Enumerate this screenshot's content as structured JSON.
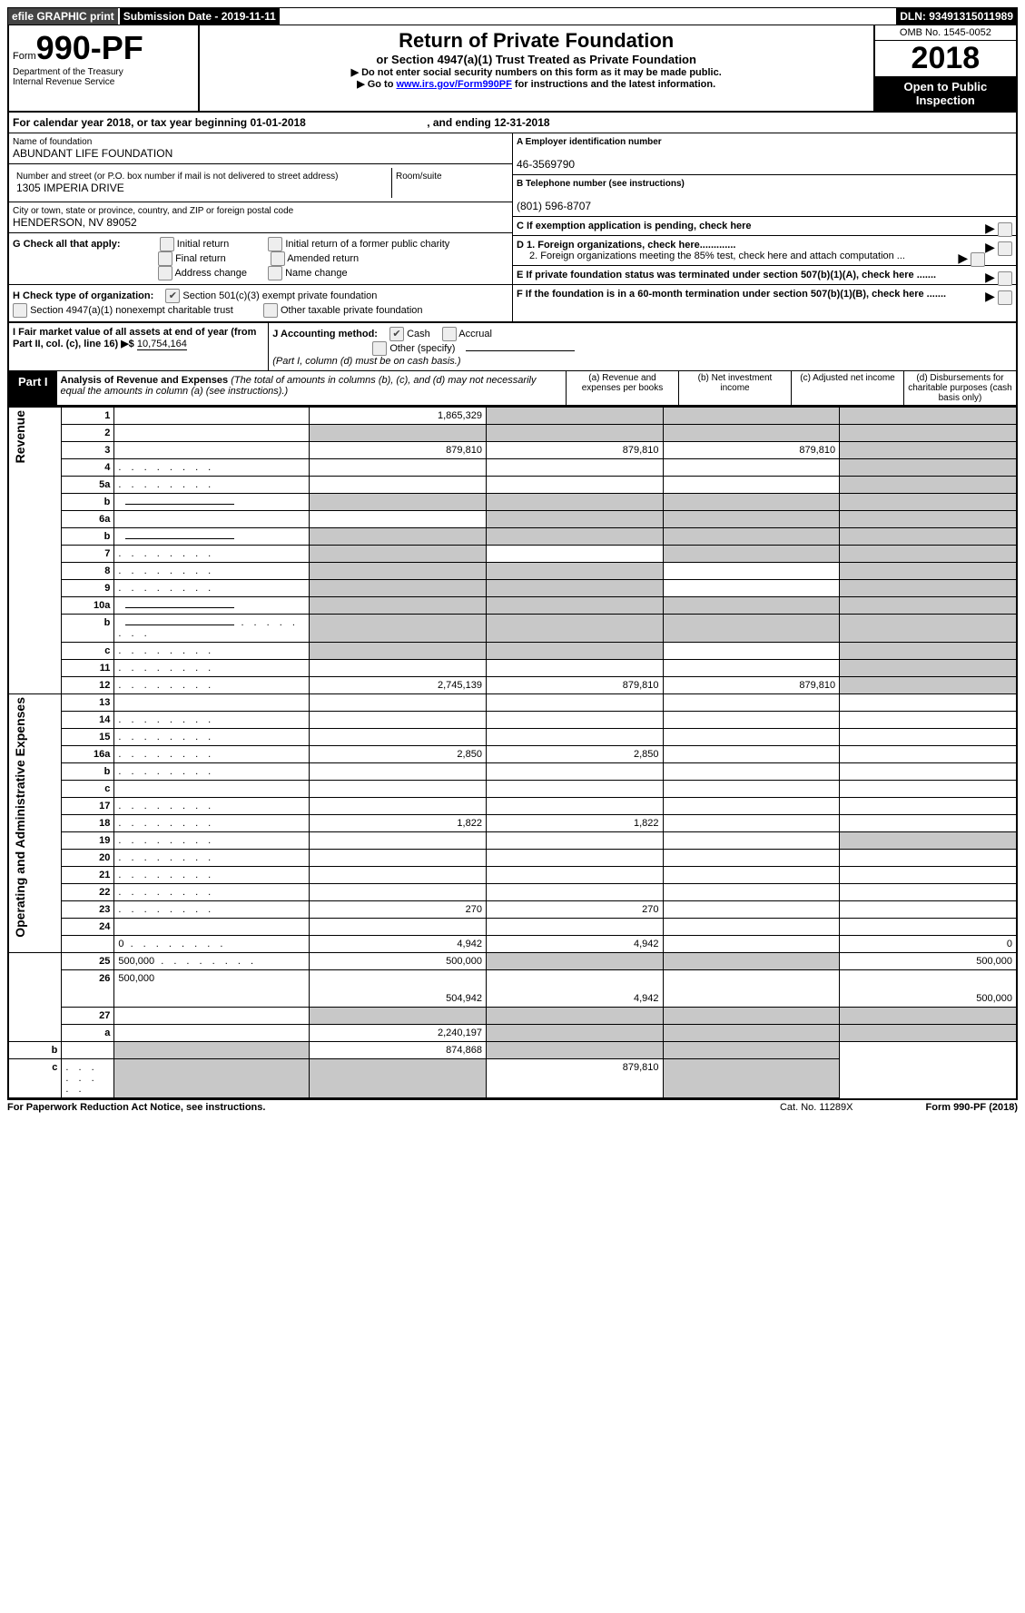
{
  "top": {
    "efile": "efile GRAPHIC print",
    "sub_date_lbl": "Submission Date - ",
    "sub_date": "2019-11-11",
    "dln_lbl": "DLN: ",
    "dln": "93491315011989"
  },
  "header": {
    "form_lbl": "Form",
    "form_num": "990-PF",
    "dept1": "Department of the Treasury",
    "dept2": "Internal Revenue Service",
    "title": "Return of Private Foundation",
    "subtitle": "or Section 4947(a)(1) Trust Treated as Private Foundation",
    "inst1": "▶ Do not enter social security numbers on this form as it may be made public.",
    "inst2_pre": "▶ Go to ",
    "inst2_link": "www.irs.gov/Form990PF",
    "inst2_post": " for instructions and the latest information.",
    "omb": "OMB No. 1545-0052",
    "year": "2018",
    "open": "Open to Public Inspection"
  },
  "cal": {
    "pre": "For calendar year 2018, or tax year beginning ",
    "begin": "01-01-2018",
    "mid": ", and ending ",
    "end": "12-31-2018"
  },
  "name": {
    "lbl": "Name of foundation",
    "val": "ABUNDANT LIFE FOUNDATION"
  },
  "addr": {
    "lbl": "Number and street (or P.O. box number if mail is not delivered to street address)",
    "val": "1305 IMPERIA DRIVE",
    "room_lbl": "Room/suite",
    "room": ""
  },
  "city": {
    "lbl": "City or town, state or province, country, and ZIP or foreign postal code",
    "val": "HENDERSON, NV  89052"
  },
  "boxA": {
    "lbl": "A Employer identification number",
    "val": "46-3569790"
  },
  "boxB": {
    "lbl": "B Telephone number (see instructions)",
    "val": "(801) 596-8707"
  },
  "boxC": {
    "lbl": "C  If exemption application is pending, check here"
  },
  "boxD1": {
    "lbl": "D 1. Foreign organizations, check here............."
  },
  "boxD2": {
    "lbl": "2. Foreign organizations meeting the 85% test, check here and attach computation ..."
  },
  "boxE": {
    "lbl": "E  If private foundation status was terminated under section 507(b)(1)(A), check here ......."
  },
  "boxF": {
    "lbl": "F  If the foundation is in a 60-month termination under section 507(b)(1)(B), check here ......."
  },
  "G": {
    "lbl": "G Check all that apply:",
    "opts": [
      "Initial return",
      "Initial return of a former public charity",
      "Final return",
      "Amended return",
      "Address change",
      "Name change"
    ]
  },
  "H": {
    "lbl": "H Check type of organization:",
    "o1": "Section 501(c)(3) exempt private foundation",
    "o2": "Section 4947(a)(1) nonexempt charitable trust",
    "o3": "Other taxable private foundation"
  },
  "I": {
    "lbl": "I Fair market value of all assets at end of year (from Part II, col. (c), line 16) ▶$",
    "val": "10,754,164"
  },
  "J": {
    "lbl": "J Accounting method:",
    "o1": "Cash",
    "o2": "Accrual",
    "o3": "Other (specify)",
    "note": "(Part I, column (d) must be on cash basis.)"
  },
  "part1": {
    "lbl": "Part I",
    "title": "Analysis of Revenue and Expenses",
    "sub": "(The total of amounts in columns (b), (c), and (d) may not necessarily equal the amounts in column (a) (see instructions).)",
    "cols": {
      "a": "(a)    Revenue and expenses per books",
      "b": "(b)    Net investment income",
      "c": "(c)    Adjusted net income",
      "d": "(d)    Disbursements for charitable purposes (cash basis only)"
    }
  },
  "sections": {
    "rev": "Revenue",
    "exp": "Operating and Administrative Expenses"
  },
  "rows": [
    {
      "n": "1",
      "d": "",
      "a": "1,865,329",
      "b": "",
      "c": "",
      "g": [
        "b",
        "c",
        "d"
      ]
    },
    {
      "n": "2",
      "d": "",
      "a": "",
      "b": "",
      "c": "",
      "g": [
        "a",
        "b",
        "c",
        "d"
      ]
    },
    {
      "n": "3",
      "d": "",
      "a": "879,810",
      "b": "879,810",
      "c": "879,810",
      "g": [
        "d"
      ]
    },
    {
      "n": "4",
      "d": "",
      "dots": 1,
      "a": "",
      "b": "",
      "c": "",
      "g": [
        "d"
      ]
    },
    {
      "n": "5a",
      "d": "",
      "dots": 1,
      "a": "",
      "b": "",
      "c": "",
      "g": [
        "d"
      ]
    },
    {
      "n": "b",
      "d": "",
      "sub": 1,
      "a": "",
      "b": "",
      "c": "",
      "g": [
        "a",
        "b",
        "c",
        "d"
      ]
    },
    {
      "n": "6a",
      "d": "",
      "a": "",
      "b": "",
      "c": "",
      "g": [
        "b",
        "c",
        "d"
      ]
    },
    {
      "n": "b",
      "d": "",
      "sub": 1,
      "a": "",
      "b": "",
      "c": "",
      "g": [
        "a",
        "b",
        "c",
        "d"
      ]
    },
    {
      "n": "7",
      "d": "",
      "dots": 1,
      "a": "",
      "b": "",
      "c": "",
      "g": [
        "a",
        "c",
        "d"
      ]
    },
    {
      "n": "8",
      "d": "",
      "dots": 1,
      "a": "",
      "b": "",
      "c": "",
      "g": [
        "a",
        "b",
        "d"
      ]
    },
    {
      "n": "9",
      "d": "",
      "dots": 1,
      "a": "",
      "b": "",
      "c": "",
      "g": [
        "a",
        "b",
        "d"
      ]
    },
    {
      "n": "10a",
      "d": "",
      "sub": 1,
      "a": "",
      "b": "",
      "c": "",
      "g": [
        "a",
        "b",
        "c",
        "d"
      ]
    },
    {
      "n": "b",
      "d": "",
      "dots": 1,
      "sub": 1,
      "a": "",
      "b": "",
      "c": "",
      "g": [
        "a",
        "b",
        "c",
        "d"
      ]
    },
    {
      "n": "c",
      "d": "",
      "dots": 1,
      "a": "",
      "b": "",
      "c": "",
      "g": [
        "a",
        "b",
        "d"
      ]
    },
    {
      "n": "11",
      "d": "",
      "dots": 1,
      "a": "",
      "b": "",
      "c": "",
      "g": [
        "d"
      ]
    },
    {
      "n": "12",
      "d": "",
      "dots": 1,
      "a": "2,745,139",
      "b": "879,810",
      "c": "879,810",
      "g": [
        "d"
      ]
    },
    {
      "n": "13",
      "d": "",
      "a": "",
      "b": "",
      "c": ""
    },
    {
      "n": "14",
      "d": "",
      "dots": 1,
      "a": "",
      "b": "",
      "c": ""
    },
    {
      "n": "15",
      "d": "",
      "dots": 1,
      "a": "",
      "b": "",
      "c": ""
    },
    {
      "n": "16a",
      "d": "",
      "dots": 1,
      "a": "2,850",
      "b": "2,850",
      "c": ""
    },
    {
      "n": "b",
      "d": "",
      "dots": 1,
      "a": "",
      "b": "",
      "c": ""
    },
    {
      "n": "c",
      "d": "",
      "a": "",
      "b": "",
      "c": ""
    },
    {
      "n": "17",
      "d": "",
      "dots": 1,
      "a": "",
      "b": "",
      "c": ""
    },
    {
      "n": "18",
      "d": "",
      "dots": 1,
      "a": "1,822",
      "b": "1,822",
      "c": ""
    },
    {
      "n": "19",
      "d": "",
      "dots": 1,
      "a": "",
      "b": "",
      "c": "",
      "g": [
        "d"
      ]
    },
    {
      "n": "20",
      "d": "",
      "dots": 1,
      "a": "",
      "b": "",
      "c": ""
    },
    {
      "n": "21",
      "d": "",
      "dots": 1,
      "a": "",
      "b": "",
      "c": ""
    },
    {
      "n": "22",
      "d": "",
      "dots": 1,
      "a": "",
      "b": "",
      "c": ""
    },
    {
      "n": "23",
      "d": "",
      "dots": 1,
      "a": "270",
      "b": "270",
      "c": ""
    },
    {
      "n": "24",
      "d": "",
      "nob": 1,
      "a": "",
      "b": "",
      "c": ""
    },
    {
      "n": "",
      "d": "0",
      "dots": 1,
      "a": "4,942",
      "b": "4,942",
      "c": ""
    },
    {
      "n": "25",
      "d": "500,000",
      "dots": 1,
      "a": "500,000",
      "b": "",
      "c": "",
      "g": [
        "b",
        "c"
      ]
    },
    {
      "n": "26",
      "d": "500,000",
      "a": "504,942",
      "b": "4,942",
      "c": "",
      "tall": 1
    },
    {
      "n": "27",
      "d": "",
      "a": "",
      "b": "",
      "c": "",
      "g": [
        "a",
        "b",
        "c",
        "d"
      ]
    },
    {
      "n": "a",
      "d": "",
      "a": "2,240,197",
      "b": "",
      "c": "",
      "g": [
        "b",
        "c",
        "d"
      ]
    },
    {
      "n": "b",
      "d": "",
      "a": "",
      "b": "874,868",
      "c": "",
      "g": [
        "a",
        "c",
        "d"
      ]
    },
    {
      "n": "c",
      "d": "",
      "dots": 1,
      "a": "",
      "b": "",
      "c": "879,810",
      "g": [
        "a",
        "b",
        "d"
      ]
    }
  ],
  "footer": {
    "l": "For Paperwork Reduction Act Notice, see instructions.",
    "c": "Cat. No. 11289X",
    "r": "Form 990-PF (2018)"
  }
}
